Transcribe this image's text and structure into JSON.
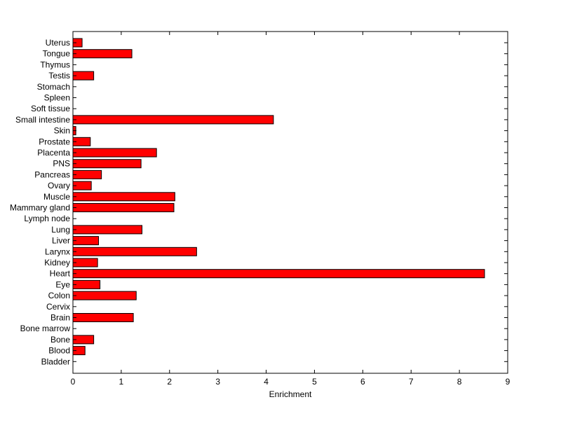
{
  "chart_data": {
    "type": "bar",
    "orientation": "horizontal",
    "categories": [
      "Uterus",
      "Tongue",
      "Thymus",
      "Testis",
      "Stomach",
      "Spleen",
      "Soft tissue",
      "Small intestine",
      "Skin",
      "Prostate",
      "Placenta",
      "PNS",
      "Pancreas",
      "Ovary",
      "Muscle",
      "Mammary gland",
      "Lymph node",
      "Lung",
      "Liver",
      "Larynx",
      "Kidney",
      "Heart",
      "Eye",
      "Colon",
      "Cervix",
      "Brain",
      "Bone marrow",
      "Bone",
      "Blood",
      "Bladder"
    ],
    "values": [
      0.19,
      1.22,
      0,
      0.43,
      0,
      0,
      0,
      4.15,
      0.06,
      0.36,
      1.73,
      1.41,
      0.59,
      0.38,
      2.11,
      2.09,
      0,
      1.43,
      0.53,
      2.56,
      0.51,
      8.52,
      0.56,
      1.31,
      0,
      1.25,
      0,
      0.43,
      0.25,
      0
    ],
    "xlabel": "Enrichment",
    "ylabel": "",
    "xlim": [
      0,
      9
    ],
    "xticks": [
      "0",
      "1",
      "2",
      "3",
      "4",
      "5",
      "6",
      "7",
      "8",
      "9"
    ],
    "grid": false,
    "bar_color": "#ff0000",
    "edge_color": "#000000"
  }
}
